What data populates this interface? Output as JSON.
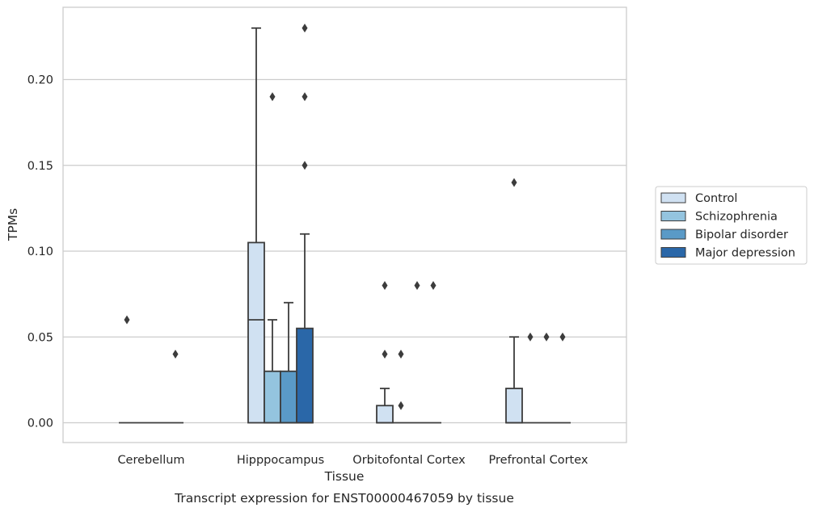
{
  "chart_data": {
    "type": "boxplot",
    "caption": "Transcript expression for ENST00000467059 by tissue",
    "xlabel": "Tissue",
    "ylabel": "TPMs",
    "ylim": [
      -0.011,
      0.242
    ],
    "yticks": [
      0.0,
      0.05,
      0.1,
      0.15,
      0.2
    ],
    "ytick_labels": [
      "0.00",
      "0.05",
      "0.10",
      "0.15",
      "0.20"
    ],
    "grid": "horizontal",
    "legend_position": "center-right",
    "categories": [
      "Cerebellum",
      "Hipppocampus",
      "Orbitofontal Cortex",
      "Prefrontal Cortex"
    ],
    "series": [
      {
        "name": "Control",
        "color": "#d0e1f2",
        "boxes": [
          {
            "q1": 0.0,
            "median": 0.0,
            "q3": 0.0,
            "whisker_low": 0.0,
            "whisker_high": 0.0,
            "outliers": [
              0.06
            ]
          },
          {
            "q1": 0.0,
            "median": 0.06,
            "q3": 0.105,
            "whisker_low": 0.0,
            "whisker_high": 0.23,
            "outliers": []
          },
          {
            "q1": 0.0,
            "median": 0.0,
            "q3": 0.01,
            "whisker_low": 0.0,
            "whisker_high": 0.02,
            "outliers": [
              0.04,
              0.08
            ]
          },
          {
            "q1": 0.0,
            "median": 0.0,
            "q3": 0.02,
            "whisker_low": 0.0,
            "whisker_high": 0.05,
            "outliers": [
              0.14
            ]
          }
        ]
      },
      {
        "name": "Schizophrenia",
        "color": "#94c4df",
        "boxes": [
          {
            "q1": 0.0,
            "median": 0.0,
            "q3": 0.0,
            "whisker_low": 0.0,
            "whisker_high": 0.0,
            "outliers": []
          },
          {
            "q1": 0.0,
            "median": 0.0,
            "q3": 0.03,
            "whisker_low": 0.0,
            "whisker_high": 0.06,
            "outliers": [
              0.19
            ]
          },
          {
            "q1": 0.0,
            "median": 0.0,
            "q3": 0.0,
            "whisker_low": 0.0,
            "whisker_high": 0.0,
            "outliers": [
              0.01,
              0.04
            ]
          },
          {
            "q1": 0.0,
            "median": 0.0,
            "q3": 0.0,
            "whisker_low": 0.0,
            "whisker_high": 0.0,
            "outliers": [
              0.05
            ]
          }
        ]
      },
      {
        "name": "Bipolar disorder",
        "color": "#5a9ac7",
        "boxes": [
          {
            "q1": 0.0,
            "median": 0.0,
            "q3": 0.0,
            "whisker_low": 0.0,
            "whisker_high": 0.0,
            "outliers": []
          },
          {
            "q1": 0.0,
            "median": 0.0,
            "q3": 0.03,
            "whisker_low": 0.0,
            "whisker_high": 0.07,
            "outliers": []
          },
          {
            "q1": 0.0,
            "median": 0.0,
            "q3": 0.0,
            "whisker_low": 0.0,
            "whisker_high": 0.0,
            "outliers": [
              0.08
            ]
          },
          {
            "q1": 0.0,
            "median": 0.0,
            "q3": 0.0,
            "whisker_low": 0.0,
            "whisker_high": 0.0,
            "outliers": [
              0.05
            ]
          }
        ]
      },
      {
        "name": "Major depression",
        "color": "#2a67a8",
        "boxes": [
          {
            "q1": 0.0,
            "median": 0.0,
            "q3": 0.0,
            "whisker_low": 0.0,
            "whisker_high": 0.0,
            "outliers": [
              0.04
            ]
          },
          {
            "q1": 0.0,
            "median": 0.0,
            "q3": 0.055,
            "whisker_low": 0.0,
            "whisker_high": 0.11,
            "outliers": [
              0.15,
              0.19,
              0.23
            ]
          },
          {
            "q1": 0.0,
            "median": 0.0,
            "q3": 0.0,
            "whisker_low": 0.0,
            "whisker_high": 0.0,
            "outliers": [
              0.08
            ]
          },
          {
            "q1": 0.0,
            "median": 0.0,
            "q3": 0.0,
            "whisker_low": 0.0,
            "whisker_high": 0.0,
            "outliers": [
              0.05
            ]
          }
        ]
      }
    ]
  }
}
